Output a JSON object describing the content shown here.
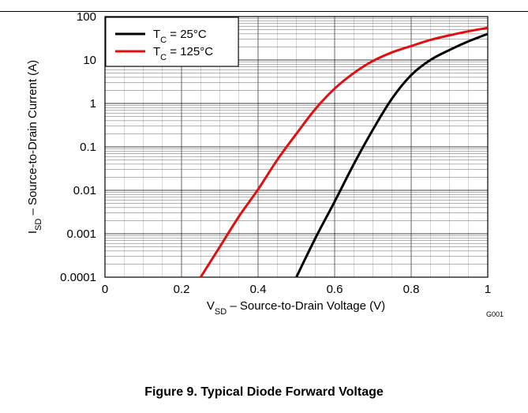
{
  "chart_data": {
    "type": "line",
    "xlabel": {
      "main": "V",
      "sub": "SD",
      "rest": " – Source-to-Drain Voltage (V)"
    },
    "ylabel": {
      "main": "I",
      "sub": "SD",
      "rest": " – Source-to-Drain Current (A)"
    },
    "x_scale": "linear",
    "y_scale": "log",
    "xlim": [
      0,
      1
    ],
    "ylim": [
      0.0001,
      100
    ],
    "x_ticks": [
      0,
      0.2,
      0.4,
      0.6,
      0.8,
      1
    ],
    "x_tick_labels": [
      "0",
      "0.2",
      "0.4",
      "0.6",
      "0.8",
      "1"
    ],
    "y_ticks": [
      0.0001,
      0.001,
      0.01,
      0.1,
      1,
      10,
      100
    ],
    "y_tick_labels": [
      "0.0001",
      "0.001",
      "0.01",
      "0.1",
      "1",
      "10",
      "100"
    ],
    "grid": true,
    "legend_position": "top-left",
    "series": [
      {
        "legend": {
          "main": "T",
          "sub": "C",
          "rest": " = 25°C"
        },
        "color": "#000000",
        "x": [
          0.5,
          0.55,
          0.6,
          0.65,
          0.7,
          0.75,
          0.8,
          0.85,
          0.9,
          0.95,
          1.0
        ],
        "y": [
          0.0001,
          0.0008,
          0.0055,
          0.04,
          0.25,
          1.3,
          4.5,
          10,
          17,
          27,
          40
        ]
      },
      {
        "legend": {
          "main": "T",
          "sub": "C",
          "rest": " = 125°C"
        },
        "color": "#e01010",
        "x": [
          0.25,
          0.3,
          0.35,
          0.4,
          0.45,
          0.5,
          0.55,
          0.6,
          0.65,
          0.7,
          0.75,
          0.8,
          0.85,
          0.9,
          0.95,
          1.0
        ],
        "y": [
          0.0001,
          0.0005,
          0.0025,
          0.0105,
          0.05,
          0.2,
          0.75,
          2.2,
          5,
          9.5,
          15,
          21,
          29,
          37,
          46,
          55
        ]
      }
    ]
  },
  "figure_code": "G001",
  "caption": "Figure 9. Typical Diode Forward Voltage"
}
